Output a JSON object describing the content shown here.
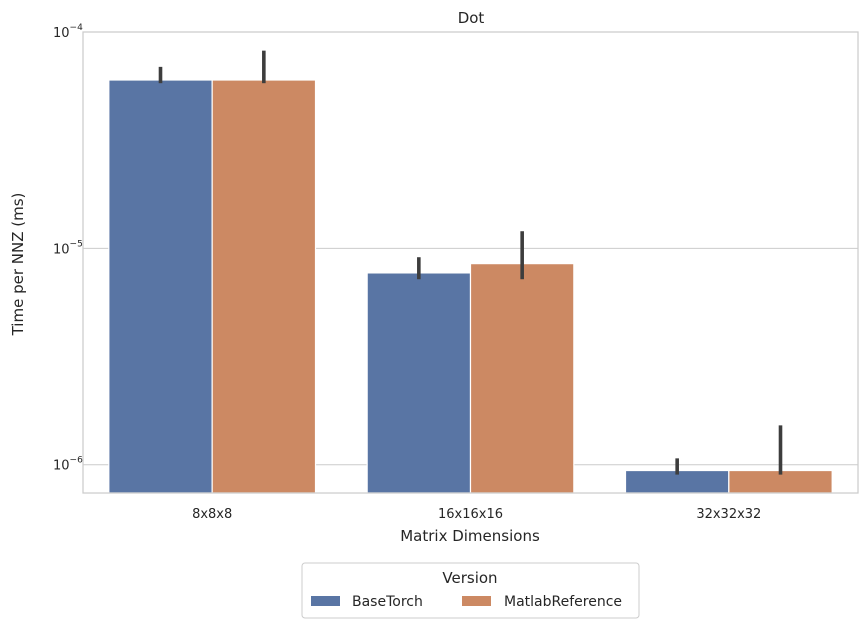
{
  "chart_data": {
    "type": "bar",
    "title": "Dot",
    "xlabel": "Matrix Dimensions",
    "ylabel": "Time per NNZ (ms)",
    "yscale": "log",
    "ylim": [
      7.4e-07,
      0.0001
    ],
    "y_ticks": [
      {
        "value": 1e-06,
        "base": "10",
        "exp": "−6"
      },
      {
        "value": 1e-05,
        "base": "10",
        "exp": "−5"
      },
      {
        "value": 0.0001,
        "base": "10",
        "exp": "−4"
      }
    ],
    "categories": [
      "8x8x8",
      "16x16x16",
      "32x32x32"
    ],
    "series": [
      {
        "name": "BaseTorch",
        "color": "#5975a4",
        "values": [
          6e-05,
          7.7e-06,
          9.4e-07
        ],
        "error_low": [
          5.8e-05,
          7.2e-06,
          9e-07
        ],
        "error_high": [
          6.9e-05,
          9.1e-06,
          1.07e-06
        ]
      },
      {
        "name": "MatlabReference",
        "color": "#cc8963",
        "values": [
          6e-05,
          8.5e-06,
          9.4e-07
        ],
        "error_low": [
          5.8e-05,
          7.2e-06,
          9e-07
        ],
        "error_high": [
          8.2e-05,
          1.2e-05,
          1.52e-06
        ]
      }
    ],
    "grid": true,
    "legend": {
      "title": "Version",
      "placement": "bottom-center"
    }
  }
}
